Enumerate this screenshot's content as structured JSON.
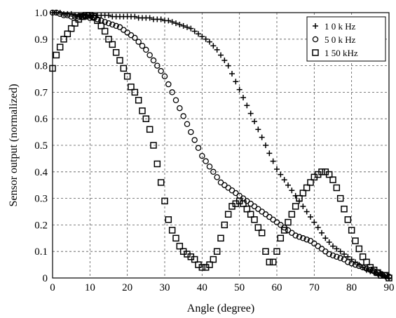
{
  "chart_data": {
    "type": "scatter",
    "title": "",
    "xlabel": "Angle (degree)",
    "ylabel": "Sensor output (normalized)",
    "xlim": [
      0,
      90
    ],
    "ylim": [
      0,
      1.0
    ],
    "xticks": [
      0,
      10,
      20,
      30,
      40,
      50,
      60,
      70,
      80,
      90
    ],
    "yticks": [
      0,
      0.1,
      0.2,
      0.3,
      0.4,
      0.5,
      0.6,
      0.7,
      0.8,
      0.9,
      1.0
    ],
    "ytick_labels": [
      "0",
      "0.1",
      "0.2",
      "0.3",
      "0.4",
      "0.5",
      "0.6",
      "0.7",
      "0.8",
      "0.9",
      "1.0"
    ],
    "grid": true,
    "grid_style": "dashed",
    "legend_position": "top-right",
    "series": [
      {
        "name": "1 0 k Hz",
        "marker": "plus",
        "color": "#000000",
        "x": [
          0,
          1,
          2,
          3,
          4,
          5,
          6,
          7,
          8,
          9,
          10,
          11,
          12,
          13,
          14,
          15,
          16,
          17,
          18,
          19,
          20,
          21,
          22,
          23,
          24,
          25,
          26,
          27,
          28,
          29,
          30,
          31,
          32,
          33,
          34,
          35,
          36,
          37,
          38,
          39,
          40,
          41,
          42,
          43,
          44,
          45,
          46,
          47,
          48,
          49,
          50,
          51,
          52,
          53,
          54,
          55,
          56,
          57,
          58,
          59,
          60,
          61,
          62,
          63,
          64,
          65,
          66,
          67,
          68,
          69,
          70,
          71,
          72,
          73,
          74,
          75,
          76,
          77,
          78,
          79,
          80,
          81,
          82,
          83,
          84,
          85,
          86,
          87,
          88,
          89,
          90
        ],
        "y": [
          1.0,
          1.0,
          1.0,
          0.995,
          0.995,
          0.995,
          0.99,
          0.99,
          0.99,
          0.99,
          0.99,
          0.99,
          0.99,
          0.99,
          0.99,
          0.99,
          0.985,
          0.985,
          0.985,
          0.985,
          0.985,
          0.985,
          0.985,
          0.98,
          0.98,
          0.98,
          0.98,
          0.975,
          0.975,
          0.975,
          0.97,
          0.97,
          0.965,
          0.96,
          0.955,
          0.95,
          0.945,
          0.94,
          0.93,
          0.92,
          0.91,
          0.9,
          0.89,
          0.875,
          0.86,
          0.84,
          0.82,
          0.8,
          0.77,
          0.74,
          0.71,
          0.68,
          0.65,
          0.62,
          0.59,
          0.56,
          0.53,
          0.5,
          0.47,
          0.44,
          0.41,
          0.39,
          0.37,
          0.35,
          0.33,
          0.31,
          0.29,
          0.27,
          0.25,
          0.23,
          0.21,
          0.19,
          0.17,
          0.15,
          0.135,
          0.12,
          0.11,
          0.1,
          0.09,
          0.08,
          0.07,
          0.06,
          0.05,
          0.04,
          0.03,
          0.025,
          0.02,
          0.015,
          0.01,
          0.005,
          0.0
        ]
      },
      {
        "name": "5 0 k Hz",
        "marker": "circle",
        "color": "#000000",
        "x": [
          0,
          1,
          2,
          3,
          4,
          5,
          6,
          7,
          8,
          9,
          10,
          11,
          12,
          13,
          14,
          15,
          16,
          17,
          18,
          19,
          20,
          21,
          22,
          23,
          24,
          25,
          26,
          27,
          28,
          29,
          30,
          31,
          32,
          33,
          34,
          35,
          36,
          37,
          38,
          39,
          40,
          41,
          42,
          43,
          44,
          45,
          46,
          47,
          48,
          49,
          50,
          51,
          52,
          53,
          54,
          55,
          56,
          57,
          58,
          59,
          60,
          61,
          62,
          63,
          64,
          65,
          66,
          67,
          68,
          69,
          70,
          71,
          72,
          73,
          74,
          75,
          76,
          77,
          78,
          79,
          80,
          81,
          82,
          83,
          84,
          85,
          86,
          87,
          88,
          89,
          90
        ],
        "y": [
          1.0,
          1.0,
          0.995,
          0.99,
          0.99,
          0.985,
          0.985,
          0.985,
          0.985,
          0.985,
          0.98,
          0.98,
          0.975,
          0.97,
          0.965,
          0.96,
          0.955,
          0.95,
          0.945,
          0.935,
          0.925,
          0.915,
          0.905,
          0.89,
          0.875,
          0.86,
          0.84,
          0.82,
          0.8,
          0.78,
          0.76,
          0.73,
          0.7,
          0.67,
          0.64,
          0.61,
          0.58,
          0.55,
          0.52,
          0.49,
          0.46,
          0.44,
          0.42,
          0.4,
          0.38,
          0.36,
          0.35,
          0.34,
          0.33,
          0.32,
          0.31,
          0.3,
          0.29,
          0.28,
          0.27,
          0.26,
          0.25,
          0.24,
          0.23,
          0.22,
          0.21,
          0.2,
          0.19,
          0.18,
          0.17,
          0.16,
          0.155,
          0.15,
          0.145,
          0.14,
          0.13,
          0.12,
          0.11,
          0.1,
          0.09,
          0.085,
          0.08,
          0.075,
          0.07,
          0.06,
          0.055,
          0.05,
          0.045,
          0.04,
          0.035,
          0.03,
          0.025,
          0.02,
          0.015,
          0.01,
          0.005
        ]
      },
      {
        "name": "1 50 kHz",
        "marker": "square",
        "color": "#000000",
        "x": [
          0,
          1,
          2,
          3,
          4,
          5,
          6,
          7,
          8,
          9,
          10,
          11,
          12,
          13,
          14,
          15,
          16,
          17,
          18,
          19,
          20,
          21,
          22,
          23,
          24,
          25,
          26,
          27,
          28,
          29,
          30,
          31,
          32,
          33,
          34,
          35,
          36,
          37,
          38,
          39,
          40,
          41,
          42,
          43,
          44,
          45,
          46,
          47,
          48,
          49,
          50,
          51,
          52,
          53,
          54,
          55,
          56,
          57,
          58,
          59,
          60,
          61,
          62,
          63,
          64,
          65,
          66,
          67,
          68,
          69,
          70,
          71,
          72,
          73,
          74,
          75,
          76,
          77,
          78,
          79,
          80,
          81,
          82,
          83,
          84,
          85,
          86,
          87,
          88,
          89,
          90
        ],
        "y": [
          0.79,
          0.84,
          0.87,
          0.9,
          0.92,
          0.94,
          0.96,
          0.975,
          0.985,
          0.99,
          0.99,
          0.985,
          0.97,
          0.95,
          0.93,
          0.9,
          0.88,
          0.85,
          0.82,
          0.79,
          0.76,
          0.72,
          0.7,
          0.67,
          0.63,
          0.6,
          0.56,
          0.5,
          0.43,
          0.36,
          0.29,
          0.22,
          0.18,
          0.15,
          0.12,
          0.1,
          0.09,
          0.08,
          0.07,
          0.05,
          0.04,
          0.04,
          0.05,
          0.07,
          0.1,
          0.15,
          0.2,
          0.24,
          0.27,
          0.28,
          0.29,
          0.28,
          0.26,
          0.24,
          0.22,
          0.19,
          0.17,
          0.1,
          0.06,
          0.06,
          0.1,
          0.15,
          0.18,
          0.21,
          0.24,
          0.27,
          0.3,
          0.32,
          0.34,
          0.36,
          0.38,
          0.39,
          0.4,
          0.4,
          0.39,
          0.37,
          0.34,
          0.3,
          0.26,
          0.22,
          0.18,
          0.14,
          0.11,
          0.08,
          0.06,
          0.04,
          0.03,
          0.02,
          0.01,
          0.01,
          0.0
        ]
      }
    ]
  }
}
